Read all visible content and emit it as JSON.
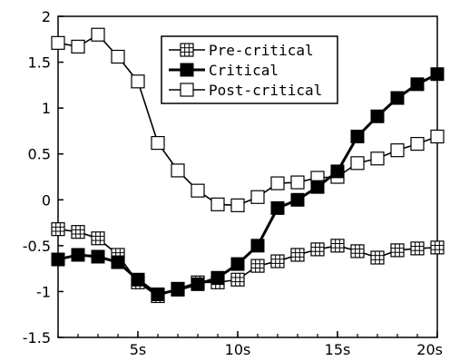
{
  "chart_data": {
    "type": "line",
    "title": "",
    "xlabel": "",
    "ylabel": "",
    "xlim": [
      1,
      20
    ],
    "ylim": [
      -1.5,
      2
    ],
    "grid": false,
    "legend_position": "top-right",
    "x": [
      1,
      2,
      3,
      4,
      5,
      6,
      7,
      8,
      9,
      10,
      11,
      12,
      13,
      14,
      15,
      16,
      17,
      18,
      19,
      20
    ],
    "x_ticks": [
      {
        "value": 5,
        "label": "5s"
      },
      {
        "value": 10,
        "label": "10s"
      },
      {
        "value": 15,
        "label": "15s"
      },
      {
        "value": 20,
        "label": "20s"
      }
    ],
    "y_ticks": [
      {
        "value": 2,
        "label": "2"
      },
      {
        "value": 1.5,
        "label": "1.5"
      },
      {
        "value": 1,
        "label": "1"
      },
      {
        "value": 0.5,
        "label": "0.5"
      },
      {
        "value": 0,
        "label": "0"
      },
      {
        "value": -0.5,
        "label": "-0.5"
      },
      {
        "value": -1,
        "label": "-1"
      },
      {
        "value": -1.5,
        "label": "-1.5"
      }
    ],
    "series": [
      {
        "name": "Pre-critical",
        "marker": "crossed-square",
        "values": [
          -0.32,
          -0.35,
          -0.42,
          -0.6,
          -0.9,
          -1.05,
          -0.97,
          -0.9,
          -0.9,
          -0.87,
          -0.72,
          -0.67,
          -0.6,
          -0.54,
          -0.5,
          -0.56,
          -0.63,
          -0.55,
          -0.53,
          -0.52
        ]
      },
      {
        "name": "Critical",
        "marker": "filled-square",
        "values": [
          -0.65,
          -0.6,
          -0.62,
          -0.68,
          -0.87,
          -1.03,
          -0.98,
          -0.92,
          -0.85,
          -0.7,
          -0.5,
          -0.09,
          0.0,
          0.14,
          0.31,
          0.69,
          0.91,
          1.11,
          1.26,
          1.37
        ]
      },
      {
        "name": "Post-critical",
        "marker": "open-square",
        "values": [
          1.71,
          1.67,
          1.8,
          1.56,
          1.29,
          0.62,
          0.32,
          0.1,
          -0.05,
          -0.06,
          0.03,
          0.18,
          0.19,
          0.24,
          0.25,
          0.4,
          0.45,
          0.54,
          0.61,
          0.69
        ]
      }
    ]
  }
}
